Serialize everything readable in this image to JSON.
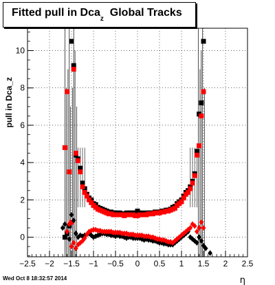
{
  "title": {
    "main": "Fitted pull in Dca",
    "sub": "z",
    "rest": "Global Tracks"
  },
  "timestamp": "Wed Oct  8 18:32:57 2014",
  "colors": {
    "series1": "#000000",
    "series2": "#ff0000",
    "grid": "#000000"
  },
  "chart_data": {
    "type": "scatter",
    "title": "Fitted pull in Dca_z Global Tracks",
    "xlabel": "η",
    "ylabel": "pull in Dca_z",
    "xlim": [
      -2.5,
      2.5
    ],
    "ylim": [
      -1.05,
      11.2
    ],
    "grid": true,
    "xticks": [
      -2.5,
      -2,
      -1.5,
      -1,
      -0.5,
      0,
      0.5,
      1,
      1.5,
      2,
      2.5
    ],
    "xtick_labels": [
      "−2.5",
      "−2",
      "−1.5",
      "−1",
      "−0.5",
      "0",
      "0.5",
      "1",
      "1.5",
      "2",
      "2.5"
    ],
    "yticks": [
      0,
      2,
      4,
      6,
      8,
      10
    ],
    "ytick_labels": [
      "0",
      "2",
      "4",
      "6",
      "8",
      "10"
    ],
    "series": [
      {
        "marker": "square",
        "color": "#000000",
        "x": [
          -1.65,
          -1.6,
          -1.55,
          -1.5,
          -1.45,
          -1.4,
          -1.35,
          -1.3,
          -1.25,
          -1.2,
          -1.15,
          -1.1,
          -1.05,
          -1.0,
          -0.95,
          -0.9,
          -0.85,
          -0.8,
          -0.75,
          -0.7,
          -0.65,
          -0.6,
          -0.55,
          -0.5,
          -0.45,
          -0.4,
          -0.35,
          -0.3,
          -0.25,
          -0.2,
          -0.15,
          -0.1,
          -0.05,
          0.0,
          0.05,
          0.1,
          0.15,
          0.2,
          0.25,
          0.3,
          0.35,
          0.4,
          0.45,
          0.5,
          0.55,
          0.6,
          0.65,
          0.7,
          0.75,
          0.8,
          0.85,
          0.9,
          0.95,
          1.0,
          1.05,
          1.1,
          1.15,
          1.2,
          1.25,
          1.3,
          1.35,
          1.4,
          1.45,
          1.5
        ],
        "y": [
          0.0,
          0.2,
          0.6,
          10.5,
          9.2,
          4.4,
          4.2,
          3.7,
          2.9,
          2.6,
          2.3,
          2.1,
          2.0,
          1.8,
          1.75,
          1.6,
          1.55,
          1.5,
          1.45,
          1.4,
          1.35,
          1.35,
          1.3,
          1.3,
          1.3,
          1.3,
          1.25,
          1.25,
          1.3,
          1.3,
          1.3,
          1.3,
          1.3,
          1.4,
          1.3,
          1.3,
          1.25,
          1.3,
          1.3,
          1.3,
          1.3,
          1.35,
          1.35,
          1.35,
          1.4,
          1.4,
          1.45,
          1.45,
          1.5,
          1.6,
          1.65,
          1.8,
          1.9,
          2.0,
          2.2,
          2.4,
          2.5,
          2.7,
          3.0,
          3.4,
          4.6,
          6.6,
          7.2,
          10.5
        ]
      },
      {
        "marker": "square",
        "color": "#ff0000",
        "x": [
          -1.65,
          -1.6,
          -1.55,
          -1.5,
          -1.45,
          -1.4,
          -1.35,
          -1.3,
          -1.25,
          -1.2,
          -1.15,
          -1.1,
          -1.05,
          -1.0,
          -0.95,
          -0.9,
          -0.85,
          -0.8,
          -0.75,
          -0.7,
          -0.65,
          -0.6,
          -0.55,
          -0.5,
          -0.45,
          -0.4,
          -0.35,
          -0.3,
          -0.25,
          -0.2,
          -0.15,
          -0.1,
          -0.05,
          0.0,
          0.05,
          0.1,
          0.15,
          0.2,
          0.25,
          0.3,
          0.35,
          0.4,
          0.45,
          0.5,
          0.55,
          0.6,
          0.65,
          0.7,
          0.75,
          0.8,
          0.85,
          0.9,
          0.95,
          1.0,
          1.05,
          1.1,
          1.15,
          1.2,
          1.25,
          1.3,
          1.35,
          1.4,
          1.45,
          1.5
        ],
        "y": [
          4.8,
          7.8,
          3.5,
          0.8,
          9.0,
          4.5,
          4.1,
          3.5,
          2.7,
          2.4,
          2.2,
          2.0,
          1.85,
          1.7,
          1.6,
          1.5,
          1.45,
          1.4,
          1.35,
          1.3,
          1.25,
          1.25,
          1.2,
          1.2,
          1.2,
          1.2,
          1.2,
          1.15,
          1.2,
          1.2,
          1.2,
          1.2,
          1.15,
          1.15,
          1.2,
          1.2,
          1.2,
          1.2,
          1.25,
          1.25,
          1.25,
          1.3,
          1.3,
          1.3,
          1.35,
          1.35,
          1.4,
          1.4,
          1.45,
          1.5,
          1.55,
          1.7,
          1.8,
          1.9,
          2.1,
          2.3,
          2.4,
          2.6,
          2.9,
          3.3,
          4.4,
          4.9,
          6.5,
          7.8
        ]
      },
      {
        "marker": "diamond",
        "color": "#000000",
        "x": [
          -1.7,
          -1.65,
          -1.6,
          -1.55,
          -1.5,
          -1.45,
          -1.4,
          -1.35,
          -1.3,
          -1.25,
          -1.2,
          -1.15,
          -1.1,
          -1.05,
          -1.0,
          -0.95,
          -0.9,
          -0.85,
          -0.8,
          -0.75,
          -0.7,
          -0.65,
          -0.6,
          -0.55,
          -0.5,
          -0.45,
          -0.4,
          -0.35,
          -0.3,
          -0.25,
          -0.2,
          -0.15,
          -0.1,
          -0.05,
          0.0,
          0.05,
          0.1,
          0.15,
          0.2,
          0.25,
          0.3,
          0.35,
          0.4,
          0.45,
          0.5,
          0.55,
          0.6,
          0.65,
          0.7,
          0.75,
          0.8,
          0.85,
          0.9,
          0.95,
          1.0,
          1.05,
          1.1,
          1.15,
          1.2,
          1.25,
          1.3,
          1.35,
          1.4,
          1.45,
          1.5,
          1.55,
          1.65
        ],
        "y": [
          0.5,
          0.7,
          0.2,
          -0.1,
          1.2,
          0.9,
          0.2,
          0.0,
          0.1,
          0.05,
          0.1,
          0.15,
          0.2,
          0.1,
          0.0,
          0.05,
          0.1,
          0.15,
          0.2,
          0.2,
          0.15,
          0.15,
          0.1,
          0.1,
          0.05,
          0.1,
          0.05,
          0.05,
          0.0,
          -0.05,
          0.0,
          0.0,
          -0.05,
          -0.05,
          -0.05,
          -0.05,
          -0.1,
          -0.15,
          -0.1,
          -0.15,
          -0.15,
          -0.2,
          -0.2,
          -0.25,
          -0.3,
          -0.3,
          -0.35,
          -0.35,
          -0.4,
          -0.4,
          -0.4,
          -0.3,
          -0.2,
          -0.1,
          0.0,
          0.1,
          0.2,
          0.3,
          0.0,
          -0.1,
          -0.2,
          -0.3,
          0.0,
          -0.2,
          -0.45,
          -0.6,
          -0.85
        ]
      },
      {
        "marker": "diamond",
        "color": "#ff0000",
        "x": [
          -1.6,
          -1.55,
          -1.5,
          -1.45,
          -1.4,
          -1.35,
          -1.3,
          -1.25,
          -1.2,
          -1.15,
          -1.1,
          -1.05,
          -1.0,
          -0.95,
          -0.9,
          -0.85,
          -0.8,
          -0.75,
          -0.7,
          -0.65,
          -0.6,
          -0.55,
          -0.5,
          -0.45,
          -0.4,
          -0.35,
          -0.3,
          -0.25,
          -0.2,
          -0.15,
          -0.1,
          -0.05,
          0.0,
          0.05,
          0.1,
          0.15,
          0.2,
          0.25,
          0.3,
          0.35,
          0.4,
          0.45,
          0.5,
          0.55,
          0.6,
          0.65,
          0.7,
          0.75,
          0.8,
          0.85,
          0.9,
          0.95,
          1.0,
          1.05,
          1.1,
          1.15,
          1.2,
          1.25,
          1.3,
          1.35,
          1.4,
          1.45,
          1.5
        ],
        "y": [
          0.3,
          0.7,
          -0.5,
          -0.3,
          -0.6,
          -0.4,
          -0.3,
          -0.2,
          -0.05,
          0.15,
          0.3,
          0.35,
          0.4,
          0.4,
          0.35,
          0.35,
          0.3,
          0.3,
          0.3,
          0.3,
          0.3,
          0.25,
          0.25,
          0.25,
          0.25,
          0.2,
          0.2,
          0.2,
          0.15,
          0.15,
          0.15,
          0.1,
          0.1,
          0.1,
          0.1,
          0.05,
          0.05,
          0.05,
          0.0,
          0.0,
          -0.05,
          -0.1,
          -0.1,
          -0.15,
          -0.15,
          -0.2,
          -0.25,
          -0.25,
          -0.3,
          -0.2,
          -0.1,
          0.0,
          0.1,
          0.2,
          0.3,
          0.4,
          0.5,
          0.7,
          0.6,
          0.3,
          0.5,
          0.8,
          0.5
        ]
      }
    ]
  }
}
